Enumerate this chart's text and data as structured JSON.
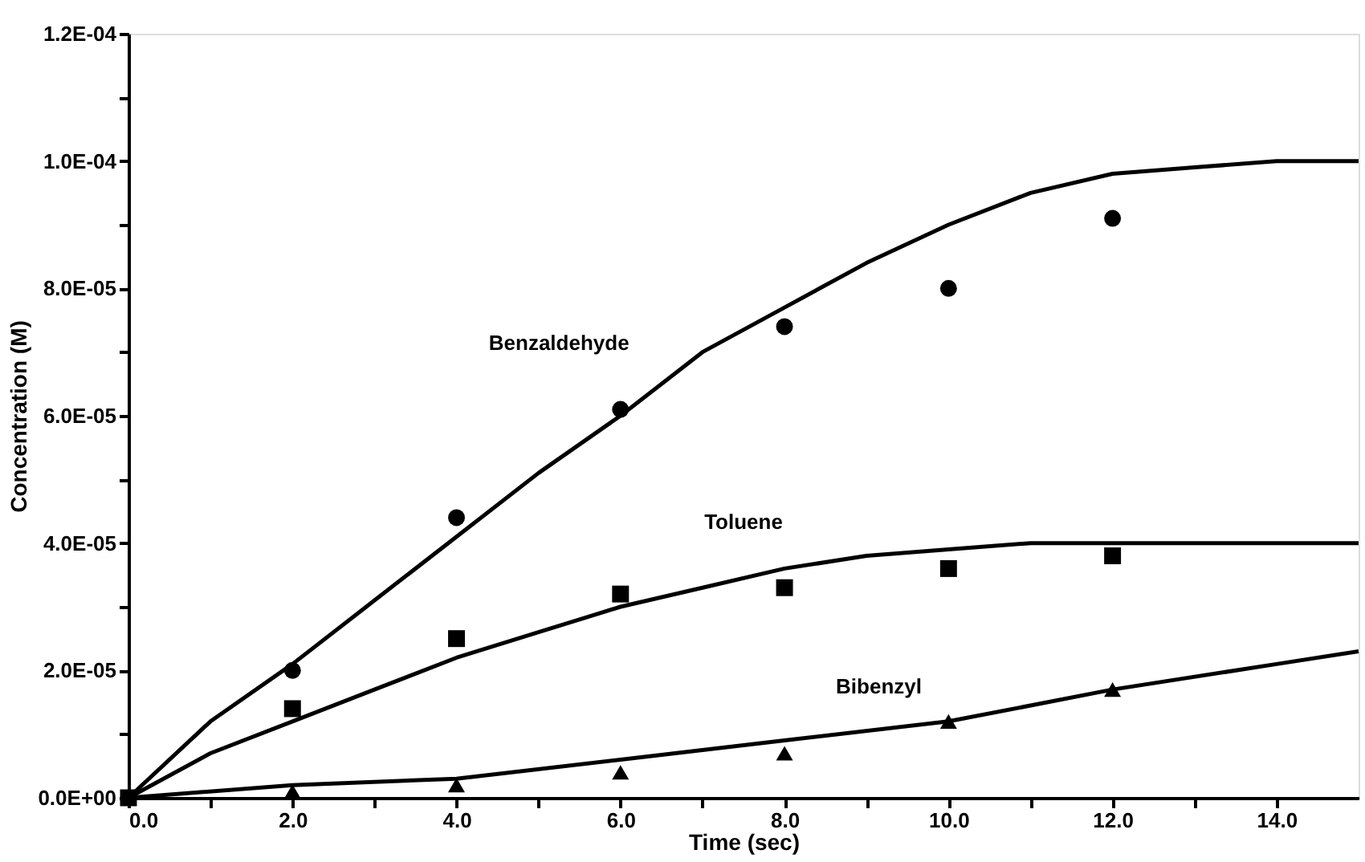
{
  "chart_data": {
    "type": "scatter",
    "xlabel": "Time (sec)",
    "ylabel": "Concentration (M)",
    "xlim": [
      0,
      15
    ],
    "ylim": [
      0,
      0.00012
    ],
    "xticks": [
      {
        "value": 0,
        "label": "0.0"
      },
      {
        "value": 1,
        "label": null
      },
      {
        "value": 2,
        "label": "2.0"
      },
      {
        "value": 3,
        "label": null
      },
      {
        "value": 4,
        "label": "4.0"
      },
      {
        "value": 5,
        "label": null
      },
      {
        "value": 6,
        "label": "6.0"
      },
      {
        "value": 7,
        "label": null
      },
      {
        "value": 8,
        "label": "8.0"
      },
      {
        "value": 9,
        "label": null
      },
      {
        "value": 10,
        "label": "10.0"
      },
      {
        "value": 11,
        "label": null
      },
      {
        "value": 12,
        "label": "12.0"
      },
      {
        "value": 13,
        "label": null
      },
      {
        "value": 14,
        "label": "14.0"
      }
    ],
    "yticks": [
      {
        "value": 0,
        "label": "0.0E+00"
      },
      {
        "value": 1e-05,
        "label": null
      },
      {
        "value": 2e-05,
        "label": "2.0E-05"
      },
      {
        "value": 3e-05,
        "label": null
      },
      {
        "value": 4e-05,
        "label": "4.0E-05"
      },
      {
        "value": 5e-05,
        "label": null
      },
      {
        "value": 6e-05,
        "label": "6.0E-05"
      },
      {
        "value": 7e-05,
        "label": null
      },
      {
        "value": 8e-05,
        "label": "8.0E-05"
      },
      {
        "value": 9e-05,
        "label": null
      },
      {
        "value": 0.0001,
        "label": "1.0E-04"
      },
      {
        "value": 0.00011,
        "label": null
      },
      {
        "value": 0.00012,
        "label": "1.2E-04"
      }
    ],
    "grid": false,
    "x": [
      0,
      2,
      4,
      6,
      8,
      10,
      12
    ],
    "series": [
      {
        "name": "Benzaldehyde",
        "color": "#000000",
        "marker": "circle",
        "values": [
          null,
          2e-05,
          4.4e-05,
          6.1e-05,
          7.4e-05,
          8e-05,
          9.1e-05
        ]
      },
      {
        "name": "Toluene",
        "color": "#000000",
        "marker": "square",
        "values": [
          0,
          1.4e-05,
          2.5e-05,
          3.2e-05,
          3.3e-05,
          3.6e-05,
          3.8e-05
        ]
      },
      {
        "name": "Bibenzyl",
        "color": "#000000",
        "marker": "triangle",
        "values": [
          null,
          1e-06,
          2e-06,
          4e-06,
          7e-06,
          1.2e-05,
          1.7e-05
        ]
      },
      {
        "type": "line",
        "color": "#000000",
        "line_style": "solid",
        "x": [
          0,
          1,
          2,
          3,
          4,
          5,
          6,
          7,
          8,
          9,
          10,
          11,
          12,
          13,
          14,
          15
        ],
        "values": [
          0,
          1.2e-05,
          2.1e-05,
          3.1e-05,
          4.1e-05,
          5.1e-05,
          6e-05,
          7e-05,
          7.7e-05,
          8.4e-05,
          9e-05,
          9.5e-05,
          9.8e-05,
          9.9e-05,
          0.0001,
          0.0001
        ]
      },
      {
        "type": "line",
        "color": "#000000",
        "line_style": "solid",
        "x": [
          0,
          1,
          2,
          3,
          4,
          5,
          6,
          7,
          8,
          9,
          10,
          11,
          12,
          13,
          14,
          15
        ],
        "values": [
          0,
          7e-06,
          1.2e-05,
          1.7e-05,
          2.2e-05,
          2.6e-05,
          3e-05,
          3.3e-05,
          3.6e-05,
          3.8e-05,
          3.9e-05,
          4e-05,
          4e-05,
          4e-05,
          4e-05,
          4e-05
        ]
      },
      {
        "type": "line",
        "color": "#000000",
        "line_style": "solid",
        "x": [
          0,
          2,
          4,
          6,
          8,
          10,
          12,
          14,
          15
        ],
        "values": [
          0,
          2e-06,
          3e-06,
          6e-06,
          9e-06,
          1.2e-05,
          1.7e-05,
          2.1e-05,
          2.3e-05
        ]
      }
    ]
  }
}
